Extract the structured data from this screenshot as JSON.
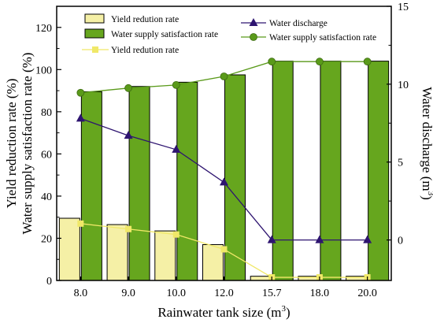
{
  "chart_data": {
    "type": "bar",
    "categories": [
      "8.0",
      "9.0",
      "10.0",
      "12.0",
      "15.7",
      "18.0",
      "20.0"
    ],
    "xlabel": "Rainwater tank size (m",
    "xlabel_sup": "3",
    "xlabel_close": ")",
    "ylabel_left_line1": "Yield reduction rate (%)",
    "ylabel_left_line2": "Water supply satisfaction rate (%)",
    "ylabel_right": "Water discharge (m",
    "ylabel_right_sup": "3",
    "ylabel_right_close": ")",
    "ylim_left": [
      0,
      130
    ],
    "yticks_left": [
      0,
      20,
      40,
      60,
      80,
      100,
      120
    ],
    "ylim_right": [
      -2.6,
      15
    ],
    "yticks_right": [
      0,
      5,
      10,
      15
    ],
    "grid": false,
    "legend_placement": "top",
    "series": [
      {
        "name": "Yield redution rate",
        "kind": "bar",
        "axis": "left",
        "color": "#f5f0a6",
        "values": [
          29.5,
          26.5,
          23.5,
          17.0,
          2.0,
          2.0,
          2.0
        ]
      },
      {
        "name": "Water supply satisfaction rate",
        "kind": "bar",
        "axis": "left",
        "color": "#66a61e",
        "values": [
          89.5,
          92.0,
          94.0,
          97.5,
          104.0,
          104.0,
          104.0
        ]
      },
      {
        "name": "Water discharge",
        "kind": "line",
        "marker": "triangle",
        "axis": "right",
        "color": "#2e1470",
        "values": [
          7.8,
          6.7,
          5.8,
          3.7,
          0.0,
          0.0,
          0.0
        ]
      },
      {
        "name": "Water supply satisfaction rate",
        "kind": "line",
        "marker": "circle",
        "axis": "right",
        "color": "#5a9a1a",
        "values": [
          9.45,
          9.75,
          9.95,
          10.5,
          11.45,
          11.45,
          11.45
        ]
      },
      {
        "name": "Yield redution rate",
        "kind": "line",
        "marker": "square",
        "axis": "right",
        "color": "#f0e868",
        "values": [
          1.05,
          0.7,
          0.35,
          -0.6,
          -2.4,
          -2.4,
          -2.4
        ]
      }
    ]
  }
}
